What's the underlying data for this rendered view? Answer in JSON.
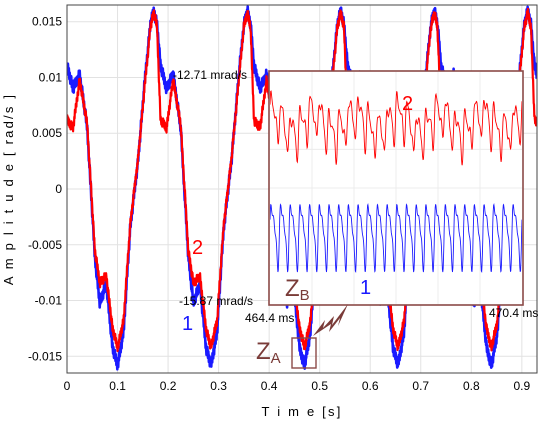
{
  "chart_data": {
    "type": "line",
    "title": "",
    "xlabel": "T i m e [s]",
    "ylabel": "A m p l i t u d e [ rad/s ]",
    "xlim": [
      0,
      0.93
    ],
    "ylim": [
      -0.0165,
      0.0165
    ],
    "grid": true,
    "x_ticks": [
      "0",
      "0.1",
      "0.2",
      "0.3",
      "0.4",
      "0.5",
      "0.6",
      "0.7",
      "0.8",
      "0.9"
    ],
    "y_ticks": [
      "-0.015",
      "-0.01",
      "-0.005",
      "0",
      "0.005",
      "0.01",
      "0.015"
    ],
    "period_s": 0.185,
    "series": [
      {
        "name": "1",
        "color": "#1a1aff",
        "x": [
          0,
          0.012,
          0.025,
          0.04,
          0.055,
          0.065,
          0.078,
          0.09,
          0.1,
          0.112,
          0.125,
          0.14,
          0.155,
          0.165,
          0.172,
          0.178,
          0.185
        ],
        "y": [
          0.0111,
          0.009,
          0.0103,
          0.0055,
          -0.006,
          -0.0102,
          -0.0085,
          -0.0142,
          -0.0158,
          -0.0128,
          -0.0035,
          0.0023,
          0.0102,
          0.0148,
          0.016,
          0.0148,
          0.0111
        ]
      },
      {
        "name": "2",
        "color": "#ff0000",
        "x": [
          0,
          0.012,
          0.025,
          0.04,
          0.055,
          0.065,
          0.078,
          0.09,
          0.1,
          0.112,
          0.125,
          0.14,
          0.155,
          0.165,
          0.172,
          0.178,
          0.185
        ],
        "y": [
          0.0062,
          0.0055,
          0.0098,
          0.0058,
          -0.0055,
          -0.0084,
          -0.0078,
          -0.0125,
          -0.0142,
          -0.0118,
          -0.0032,
          0.0025,
          0.0098,
          0.0146,
          0.0158,
          0.0146,
          0.0062
        ]
      }
    ],
    "annotations": {
      "upper_value": "-12.71 mrad/s",
      "lower_value": "-15.87 mrad/s",
      "time_left": "464.4 ms",
      "time_right": "470.4 ms",
      "curve_label_red": "2",
      "curve_label_blue": "1",
      "zone_a": "Z",
      "zone_a_sub": "A",
      "zone_b": "Z",
      "zone_b_sub": "B",
      "inset_label_red": "2",
      "inset_label_blue": "1"
    },
    "inset": {
      "zoom_window_s": [
        0.462,
        0.49
      ],
      "border_color": "#8b4a47"
    }
  }
}
